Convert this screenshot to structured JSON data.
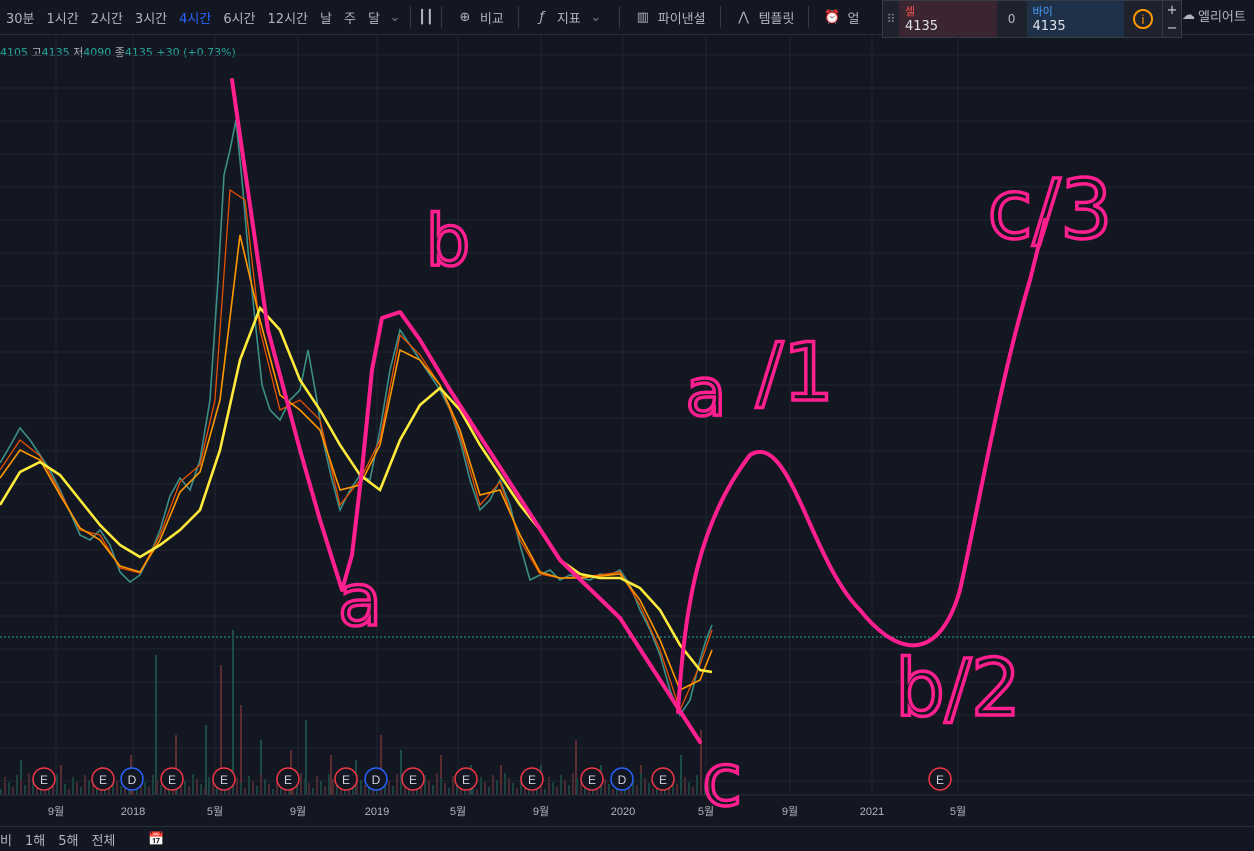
{
  "toolbar": {
    "timeframes": [
      "30분",
      "1시간",
      "2시간",
      "3시간",
      "4시간",
      "6시간",
      "12시간",
      "날",
      "주",
      "달"
    ],
    "active_timeframe": "4시간",
    "compare_label": "비교",
    "indicators_label": "지표",
    "financials_label": "파이낸셜",
    "templates_label": "템플릿",
    "alert_label": "얼",
    "elliott_label": "엘리어트"
  },
  "ohlc": {
    "open_tail": "4105",
    "high_label": "고",
    "high": "4135",
    "low_label": "저",
    "low": "4090",
    "close_label": "종",
    "close": "4135",
    "change": "+30 (+0.73%)"
  },
  "trade_panel": {
    "sell_label": "셀",
    "sell_price": "4135",
    "quantity": "0",
    "buy_label": "바이",
    "buy_price": "4135",
    "plus": "+",
    "minus": "−"
  },
  "bottom_bar": {
    "ranges": [
      "비",
      "1해",
      "5해",
      "전체"
    ]
  },
  "chart_data": {
    "type": "line",
    "x_ticks": [
      {
        "label": "9월",
        "x": 56
      },
      {
        "label": "2018",
        "x": 133
      },
      {
        "label": "5월",
        "x": 215
      },
      {
        "label": "9월",
        "x": 298
      },
      {
        "label": "2019",
        "x": 377
      },
      {
        "label": "5월",
        "x": 458
      },
      {
        "label": "9월",
        "x": 541
      },
      {
        "label": "2020",
        "x": 623
      },
      {
        "label": "5월",
        "x": 706
      },
      {
        "label": "9월",
        "x": 790
      },
      {
        "label": "2021",
        "x": 872
      },
      {
        "label": "5월",
        "x": 958
      }
    ],
    "price_series": [
      [
        0,
        463
      ],
      [
        10,
        446
      ],
      [
        20,
        428
      ],
      [
        30,
        440
      ],
      [
        40,
        455
      ],
      [
        50,
        470
      ],
      [
        60,
        490
      ],
      [
        70,
        512
      ],
      [
        80,
        535
      ],
      [
        90,
        540
      ],
      [
        100,
        530
      ],
      [
        110,
        545
      ],
      [
        120,
        572
      ],
      [
        130,
        582
      ],
      [
        140,
        575
      ],
      [
        150,
        555
      ],
      [
        160,
        530
      ],
      [
        170,
        496
      ],
      [
        180,
        478
      ],
      [
        190,
        490
      ],
      [
        200,
        460
      ],
      [
        210,
        400
      ],
      [
        218,
        280
      ],
      [
        224,
        175
      ],
      [
        230,
        150
      ],
      [
        236,
        120
      ],
      [
        242,
        180
      ],
      [
        248,
        250
      ],
      [
        255,
        320
      ],
      [
        262,
        385
      ],
      [
        270,
        410
      ],
      [
        280,
        420
      ],
      [
        290,
        400
      ],
      [
        300,
        390
      ],
      [
        308,
        350
      ],
      [
        316,
        395
      ],
      [
        324,
        445
      ],
      [
        332,
        480
      ],
      [
        340,
        510
      ],
      [
        350,
        490
      ],
      [
        360,
        475
      ],
      [
        370,
        480
      ],
      [
        380,
        430
      ],
      [
        390,
        370
      ],
      [
        400,
        330
      ],
      [
        410,
        345
      ],
      [
        420,
        360
      ],
      [
        430,
        375
      ],
      [
        440,
        390
      ],
      [
        450,
        410
      ],
      [
        460,
        440
      ],
      [
        470,
        480
      ],
      [
        480,
        510
      ],
      [
        490,
        500
      ],
      [
        500,
        480
      ],
      [
        510,
        505
      ],
      [
        520,
        545
      ],
      [
        530,
        580
      ],
      [
        540,
        575
      ],
      [
        550,
        570
      ],
      [
        560,
        580
      ],
      [
        570,
        575
      ],
      [
        580,
        578
      ],
      [
        590,
        580
      ],
      [
        600,
        574
      ],
      [
        610,
        575
      ],
      [
        620,
        570
      ],
      [
        630,
        585
      ],
      [
        640,
        610
      ],
      [
        650,
        630
      ],
      [
        660,
        655
      ],
      [
        670,
        690
      ],
      [
        680,
        715
      ],
      [
        690,
        700
      ],
      [
        700,
        660
      ],
      [
        706,
        640
      ],
      [
        712,
        625
      ]
    ],
    "ma_fast": [
      [
        0,
        470
      ],
      [
        20,
        440
      ],
      [
        40,
        456
      ],
      [
        60,
        492
      ],
      [
        80,
        530
      ],
      [
        100,
        535
      ],
      [
        120,
        568
      ],
      [
        140,
        573
      ],
      [
        160,
        535
      ],
      [
        180,
        482
      ],
      [
        200,
        465
      ],
      [
        215,
        400
      ],
      [
        230,
        190
      ],
      [
        245,
        200
      ],
      [
        260,
        330
      ],
      [
        280,
        410
      ],
      [
        300,
        400
      ],
      [
        320,
        420
      ],
      [
        340,
        505
      ],
      [
        360,
        480
      ],
      [
        380,
        440
      ],
      [
        400,
        335
      ],
      [
        420,
        355
      ],
      [
        440,
        385
      ],
      [
        460,
        435
      ],
      [
        480,
        505
      ],
      [
        500,
        482
      ],
      [
        520,
        540
      ],
      [
        540,
        574
      ],
      [
        560,
        578
      ],
      [
        580,
        577
      ],
      [
        600,
        575
      ],
      [
        620,
        572
      ],
      [
        640,
        605
      ],
      [
        660,
        650
      ],
      [
        680,
        710
      ],
      [
        700,
        665
      ],
      [
        712,
        630
      ]
    ],
    "ma_mid": [
      [
        0,
        478
      ],
      [
        20,
        450
      ],
      [
        40,
        460
      ],
      [
        60,
        495
      ],
      [
        80,
        528
      ],
      [
        100,
        540
      ],
      [
        120,
        566
      ],
      [
        140,
        572
      ],
      [
        160,
        540
      ],
      [
        180,
        492
      ],
      [
        200,
        472
      ],
      [
        220,
        400
      ],
      [
        240,
        235
      ],
      [
        260,
        320
      ],
      [
        280,
        395
      ],
      [
        300,
        410
      ],
      [
        320,
        430
      ],
      [
        340,
        490
      ],
      [
        360,
        485
      ],
      [
        380,
        445
      ],
      [
        400,
        350
      ],
      [
        420,
        360
      ],
      [
        440,
        385
      ],
      [
        460,
        430
      ],
      [
        480,
        495
      ],
      [
        500,
        490
      ],
      [
        520,
        535
      ],
      [
        540,
        572
      ],
      [
        560,
        578
      ],
      [
        580,
        578
      ],
      [
        600,
        576
      ],
      [
        620,
        574
      ],
      [
        640,
        600
      ],
      [
        660,
        640
      ],
      [
        680,
        690
      ],
      [
        700,
        680
      ],
      [
        712,
        650
      ]
    ],
    "ma_slow": [
      [
        0,
        505
      ],
      [
        20,
        472
      ],
      [
        40,
        462
      ],
      [
        60,
        475
      ],
      [
        80,
        500
      ],
      [
        100,
        525
      ],
      [
        120,
        545
      ],
      [
        140,
        557
      ],
      [
        160,
        545
      ],
      [
        180,
        530
      ],
      [
        200,
        510
      ],
      [
        220,
        450
      ],
      [
        240,
        360
      ],
      [
        260,
        308
      ],
      [
        280,
        330
      ],
      [
        300,
        380
      ],
      [
        320,
        410
      ],
      [
        340,
        445
      ],
      [
        360,
        475
      ],
      [
        380,
        490
      ],
      [
        400,
        440
      ],
      [
        420,
        405
      ],
      [
        440,
        388
      ],
      [
        460,
        410
      ],
      [
        480,
        445
      ],
      [
        500,
        475
      ],
      [
        520,
        505
      ],
      [
        540,
        530
      ],
      [
        560,
        560
      ],
      [
        580,
        574
      ],
      [
        600,
        578
      ],
      [
        620,
        578
      ],
      [
        640,
        588
      ],
      [
        660,
        610
      ],
      [
        680,
        645
      ],
      [
        700,
        670
      ],
      [
        712,
        672
      ]
    ],
    "volume": [
      [
        20,
        35
      ],
      [
        60,
        30
      ],
      [
        100,
        28
      ],
      [
        130,
        40
      ],
      [
        155,
        140
      ],
      [
        175,
        60
      ],
      [
        205,
        70
      ],
      [
        220,
        130
      ],
      [
        232,
        165
      ],
      [
        240,
        90
      ],
      [
        260,
        55
      ],
      [
        290,
        45
      ],
      [
        305,
        75
      ],
      [
        330,
        40
      ],
      [
        355,
        35
      ],
      [
        380,
        60
      ],
      [
        400,
        45
      ],
      [
        440,
        40
      ],
      [
        470,
        30
      ],
      [
        500,
        30
      ],
      [
        540,
        30
      ],
      [
        575,
        55
      ],
      [
        600,
        30
      ],
      [
        640,
        30
      ],
      [
        680,
        40
      ],
      [
        700,
        65
      ]
    ],
    "event_markers": [
      {
        "label": "E",
        "x": 44
      },
      {
        "label": "E",
        "x": 103
      },
      {
        "label": "D",
        "x": 132
      },
      {
        "label": "E",
        "x": 172
      },
      {
        "label": "E",
        "x": 224
      },
      {
        "label": "E",
        "x": 288
      },
      {
        "label": "E",
        "x": 346
      },
      {
        "label": "D",
        "x": 376
      },
      {
        "label": "E",
        "x": 413
      },
      {
        "label": "E",
        "x": 466
      },
      {
        "label": "E",
        "x": 532
      },
      {
        "label": "E",
        "x": 592
      },
      {
        "label": "D",
        "x": 622
      },
      {
        "label": "E",
        "x": 663
      },
      {
        "label": "E",
        "x": 940
      }
    ],
    "annotations": {
      "labels": [
        {
          "text": "b",
          "x": 448,
          "y": 265,
          "size": 70
        },
        {
          "text": "a",
          "x": 360,
          "y": 625,
          "size": 72
        },
        {
          "text": "a",
          "x": 706,
          "y": 415,
          "size": 66
        },
        {
          "text": "c",
          "x": 722,
          "y": 805,
          "size": 72
        },
        {
          "text": "b/2",
          "x": 958,
          "y": 715,
          "size": 78
        },
        {
          "text": "c/3",
          "x": 1050,
          "y": 238,
          "size": 82
        },
        {
          "text": "/1",
          "x": 795,
          "y": 400,
          "size": 80
        }
      ],
      "paths": [
        "M232,80 L268,330 L300,450 L320,520 L342,590 L352,555 L362,470 L372,370 L382,318 L400,312 L420,340 L450,390 L560,560 L620,618 L700,742",
        "M678,712 C685,600 700,520 750,455 C790,430 810,560 860,610 C900,660 940,660 960,590 C980,500 1000,380 1030,280 L1045,220"
      ]
    }
  }
}
